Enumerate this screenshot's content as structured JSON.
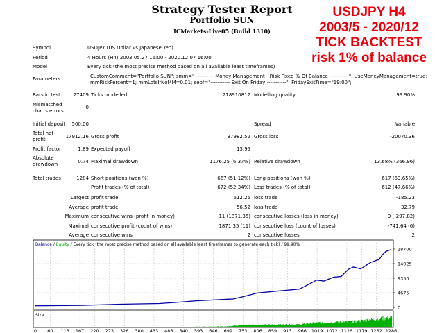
{
  "header": {
    "title": "Strategy Tester Report",
    "subtitle": "Portfolio SUN",
    "server": "ICMarkets-Live05 (Build 1310)"
  },
  "overlay": [
    "USDJPY H4",
    "2003/5 - 2020/12",
    "TICK BACKTEST",
    "risk 1% of balance"
  ],
  "info": {
    "symbol_label": "Symbol",
    "symbol": "USDJPY (US Dollar vs Japanese Yen)",
    "period_label": "Period",
    "period": "4 Hours (H4) 2003.05.27 16:00 - 2020.12.07 16:00",
    "model_label": "Model",
    "model": "Every tick (the most precise method based on all available least timeframes)",
    "parameters_label": "Parameters",
    "parameters_1": "CustomComment=\"Portfolio SUN\"; smm=\"----------- Money Management - Risk Fixed % Of Balance -----------\"; UseMoneyManagement=true;",
    "parameters_2": "mmRiskPercent=1; mmLotsIfNoMM=0.01; seof=\"----------- Exit On Friday -----------\"; FridayExitTime=\"19:00\";",
    "bars_label": "Bars in test",
    "bars": "27409",
    "ticks_label": "Ticks modelled",
    "ticks": "218910812",
    "quality_label": "Modelling quality",
    "quality": "99.90%",
    "mismatch_label_1": "Mismatched",
    "mismatch_label_2": "charts errors",
    "mismatch": "0"
  },
  "stats": {
    "deposit_label": "Initial deposit",
    "deposit": "500.00",
    "spread_label": "Spread",
    "spread": "Variable",
    "net_label_1": "Total net",
    "net_label_2": "profit",
    "net": "17912.16",
    "gross_profit_label": "Gross profit",
    "gross_profit": "37982.52",
    "gross_loss_label": "Gross loss",
    "gross_loss": "-20070.36",
    "pf_label": "Profit factor",
    "pf": "1.89",
    "payoff_label": "Expected payoff",
    "payoff": "13.95",
    "abs_label_1": "Absolute",
    "abs_label_2": "drawdown",
    "abs": "0.74",
    "maxdd_label": "Maximal drawdown",
    "maxdd": "1176.25 (6.37%)",
    "reldd_label": "Relative drawdown",
    "reldd": "13.68% (366.96)",
    "trades_label": "Total trades",
    "trades": "1284",
    "short_label": "Short positions (won %)",
    "short": "667 (51.12%)",
    "long_label": "Long positions (won %)",
    "long": "617 (53.65%)",
    "profit_trades_label": "Profit trades (% of total)",
    "profit_trades": "672 (52.34%)",
    "loss_trades_label": "Loss trades (% of total)",
    "loss_trades": "612 (47.66%)",
    "rows": [
      {
        "pre": "Largest",
        "a": "profit trade",
        "av": "612.25",
        "b": "loss trade",
        "bv": "-185.23"
      },
      {
        "pre": "Average",
        "a": "profit trade",
        "av": "56.52",
        "b": "loss trade",
        "bv": "-32.79"
      },
      {
        "pre": "Maximum",
        "a": "consecutive wins (profit in money)",
        "av": "11 (1871.35)",
        "b": "consecutive losses (loss in money)",
        "bv": "9 (-297.82)"
      },
      {
        "pre": "Maximal",
        "a": "consecutive profit (count of wins)",
        "av": "1871.35 (11)",
        "b": "consecutive loss (count of losses)",
        "bv": "-741.64 (6)"
      },
      {
        "pre": "Average",
        "a": "consecutive wins",
        "av": "2",
        "b": "consecutive losses",
        "bv": "2"
      }
    ]
  },
  "chart_data": {
    "type": "line",
    "legend_balance": "Balance",
    "legend_sep1": " / ",
    "legend_equity": "Equity",
    "legend_rest": " / Every tick (the most precise method based on all available least timeframes to generate each tick) / 99.90%",
    "size_label": "Size",
    "x_ticks": [
      "0",
      "60",
      "113",
      "167",
      "220",
      "273",
      "326",
      "380",
      "433",
      "486",
      "540",
      "593",
      "646",
      "699",
      "753",
      "806",
      "859",
      "913",
      "966",
      "1019",
      "1072",
      "1126",
      "1179",
      "1232",
      "1286"
    ],
    "y_ticks": [
      "18700",
      "14025",
      "9350",
      "4675",
      "0"
    ],
    "ylim": [
      0,
      18700
    ],
    "xlim": [
      0,
      1304
    ],
    "balance": [
      [
        0,
        500
      ],
      [
        175,
        650
      ],
      [
        310,
        1010
      ],
      [
        454,
        1230
      ],
      [
        517,
        1590
      ],
      [
        589,
        2090
      ],
      [
        706,
        2600
      ],
      [
        724,
        2670
      ],
      [
        760,
        3390
      ],
      [
        814,
        4620
      ],
      [
        877,
        5130
      ],
      [
        967,
        5850
      ],
      [
        985,
        6640
      ],
      [
        1012,
        7870
      ],
      [
        1030,
        8740
      ],
      [
        1057,
        8450
      ],
      [
        1093,
        9680
      ],
      [
        1120,
        9890
      ],
      [
        1147,
        12200
      ],
      [
        1165,
        12920
      ],
      [
        1192,
        12350
      ],
      [
        1228,
        14370
      ],
      [
        1250,
        15090
      ],
      [
        1259,
        15310
      ],
      [
        1272,
        16900
      ],
      [
        1285,
        17980
      ],
      [
        1304,
        18560
      ]
    ],
    "size_envelope": [
      [
        380,
        0.02
      ],
      [
        700,
        0.1
      ],
      [
        753,
        0.25
      ],
      [
        966,
        0.3
      ],
      [
        1019,
        0.45
      ],
      [
        1179,
        0.6
      ],
      [
        1232,
        0.8
      ],
      [
        1304,
        1
      ]
    ],
    "colors": {
      "balance": "#0000a0",
      "equity": "#00b000",
      "size": "#00b000",
      "grid": "#c0c0c0"
    }
  }
}
